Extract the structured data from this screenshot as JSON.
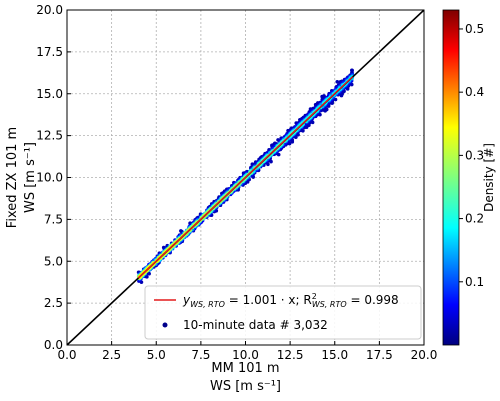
{
  "chart_data": {
    "type": "scatter",
    "xlabel_line1": "MM 101 m",
    "xlabel_line2": "WS [m s⁻¹]",
    "ylabel_line1": "Fixed ZX 101 m",
    "ylabel_line2": "WS [m s⁻¹]",
    "xlim": [
      0,
      20
    ],
    "ylim": [
      0,
      20
    ],
    "xticks": [
      "0.0",
      "2.5",
      "5.0",
      "7.5",
      "10.0",
      "12.5",
      "15.0",
      "17.5",
      "20.0"
    ],
    "yticks": [
      "0.0",
      "2.5",
      "5.0",
      "7.5",
      "10.0",
      "12.5",
      "15.0",
      "17.5",
      "20.0"
    ],
    "grid": true,
    "identity_line": {
      "x": [
        0,
        20
      ],
      "y": [
        0,
        20
      ],
      "color": "#000000"
    },
    "fit_line": {
      "slope": 1.001,
      "x_range": [
        4.0,
        16.0
      ],
      "color": "#e41a1c"
    },
    "data_range": {
      "x": [
        4.0,
        16.0
      ],
      "spread": 0.2
    },
    "point_count": "3,032",
    "legend": {
      "position": "lower-right",
      "entries": [
        {
          "kind": "line",
          "label_main": "y",
          "label_sub": "WS, RTO",
          "label_rest": " = 1.001 · x; R",
          "r_sup": "2",
          "r_sub": "WS, RTO",
          "label_end": " = 0.998",
          "color": "#e41a1c"
        },
        {
          "kind": "point",
          "label": "10-minute data # 3,032",
          "color": "#00008b"
        }
      ]
    },
    "colorbar": {
      "label": "Density [#]",
      "min": 0.0,
      "max": 0.53,
      "ticks": [
        {
          "value": 0.1,
          "label": "0.1"
        },
        {
          "value": 0.2,
          "label": "0.2"
        },
        {
          "value": 0.3,
          "label": "0.3"
        },
        {
          "value": 0.4,
          "label": "0.4"
        },
        {
          "value": 0.5,
          "label": "0.5"
        }
      ],
      "colormap": "jet"
    }
  }
}
